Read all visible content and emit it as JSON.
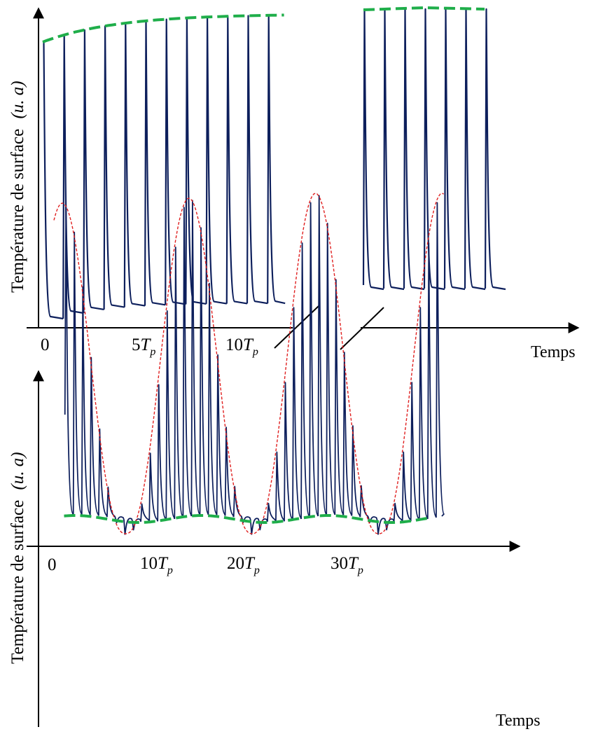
{
  "chart_data": [
    {
      "type": "line",
      "ylabel": "Température de surface",
      "ylabel_unit": "(u. a)",
      "xlabel": "Temps",
      "x_ticks": [
        {
          "coef": "0",
          "var": "",
          "sub": ""
        },
        {
          "coef": "5",
          "var": "T",
          "sub": "p"
        },
        {
          "coef": "10",
          "var": "T",
          "sub": "p"
        }
      ],
      "x_axis_break": true,
      "series": [
        {
          "role": "surface temperature pulses",
          "color": "#0d1f5c",
          "pulses_before_break": 12,
          "pulses_after_break": 7
        },
        {
          "role": "peak envelope",
          "color": "#1fae4a",
          "style": "dashed"
        }
      ]
    },
    {
      "type": "line",
      "ylabel": "Température de surface",
      "ylabel_unit": "(u. a)",
      "xlabel": "Temps",
      "x_ticks": [
        {
          "coef": "0",
          "var": "",
          "sub": ""
        },
        {
          "coef": "10",
          "var": "T",
          "sub": "p"
        },
        {
          "coef": "20",
          "var": "T",
          "sub": "p"
        },
        {
          "coef": "30",
          "var": "T",
          "sub": "p"
        }
      ],
      "modulation_period_in_Tp": 15,
      "series": [
        {
          "role": "surface temperature pulses",
          "color": "#0d1f5c",
          "pulse_count": 45
        },
        {
          "role": "peak envelope",
          "color": "#e02020",
          "style": "dotted"
        },
        {
          "role": "baseline envelope",
          "color": "#1fae4a",
          "style": "dashed"
        }
      ]
    }
  ]
}
